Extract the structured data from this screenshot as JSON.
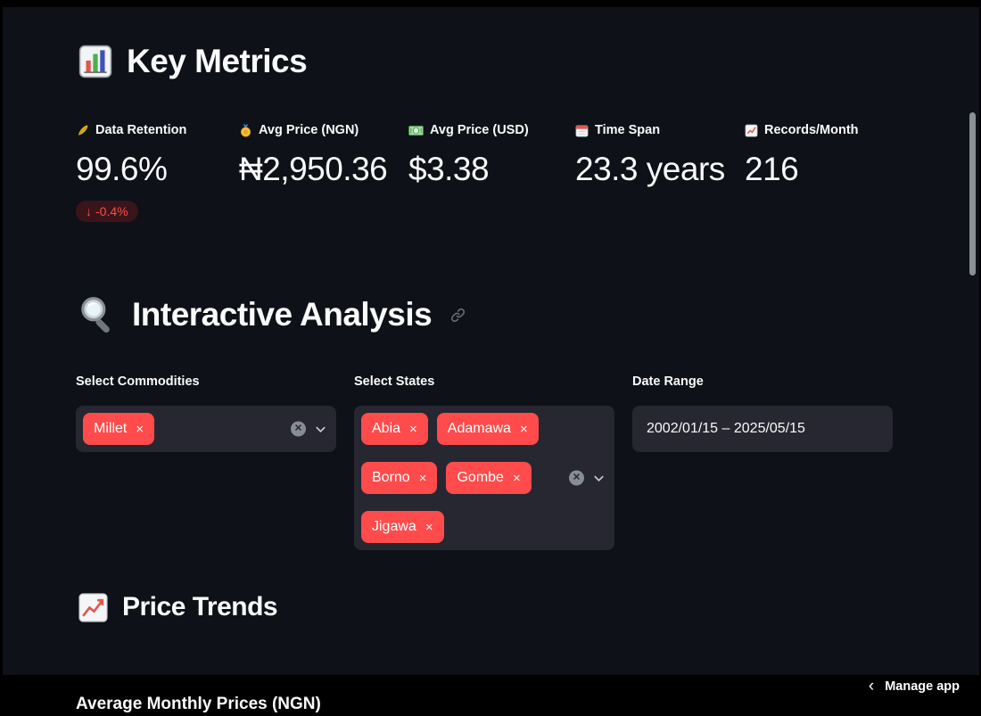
{
  "app": {
    "background": "#0e1117",
    "accent": "#ff4b4b"
  },
  "key_metrics": {
    "title": "Key Metrics",
    "title_icon": "bar-chart-icon",
    "metrics": [
      {
        "icon": "feather-icon",
        "label": "Data Retention",
        "value": "99.6%",
        "delta": "-0.4%",
        "delta_direction": "down",
        "delta_arrow": "↓"
      },
      {
        "icon": "medal-icon",
        "label": "Avg Price (NGN)",
        "value": "₦2,950.36"
      },
      {
        "icon": "banknote-icon",
        "label": "Avg Price (USD)",
        "value": "$3.38"
      },
      {
        "icon": "calendar-icon",
        "label": "Time Span",
        "value": "23.3 years"
      },
      {
        "icon": "records-chart-icon",
        "label": "Records/Month",
        "value": "216"
      }
    ]
  },
  "interactive_analysis": {
    "title": "Interactive Analysis",
    "title_icon": "magnifier-icon",
    "anchor_icon": "link-icon"
  },
  "filters": {
    "clear_all_symbol": "✕",
    "commodities": {
      "label": "Select Commodities",
      "selected": [
        "Millet"
      ],
      "remove_symbol": "×"
    },
    "states": {
      "label": "Select States",
      "selected": [
        "Abia",
        "Adamawa",
        "Borno",
        "Gombe",
        "Jigawa"
      ],
      "remove_symbol": "×"
    },
    "date_range": {
      "label": "Date Range",
      "value": "2002/01/15 – 2025/05/15"
    }
  },
  "price_trends": {
    "title": "Price Trends",
    "title_icon": "line-chart-icon",
    "chart_title": "Average Monthly Prices (NGN)"
  },
  "footer": {
    "manage_app_label": "Manage app",
    "collapse_glyph": "‹",
    "collapse_icon": "chevron-left-icon"
  }
}
